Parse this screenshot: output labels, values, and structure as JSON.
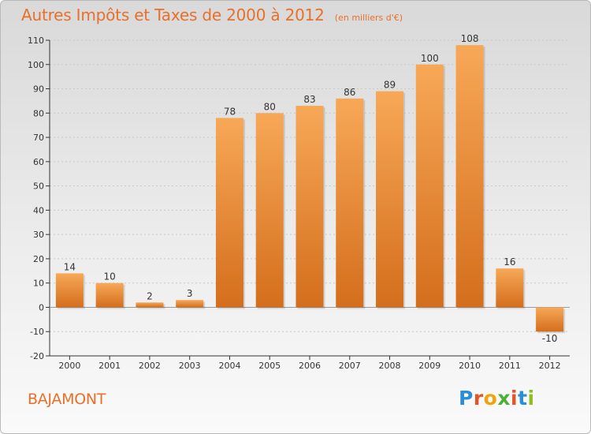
{
  "header": {
    "title": "Autres Impôts et Taxes de 2000 à 2012",
    "unit": "(en milliers d'€)"
  },
  "commune": "BAJAMONT",
  "logo": {
    "text": "Proxiti",
    "letter_colors": [
      "#2a8fd6",
      "#e65325",
      "#f0a30a",
      "#4caf3a",
      "#e65325",
      "#2a8fd6",
      "#8fbf1f"
    ]
  },
  "colors": {
    "bar_light": "#f7a857",
    "bar_dark": "#d46e1c",
    "axis": "#333333",
    "gridline": "#c8c8c8",
    "title": "#e8702a"
  },
  "chart_data": {
    "type": "bar",
    "title": "Autres Impôts et Taxes de 2000 à 2012",
    "subtitle": "(en milliers d'€)",
    "xlabel": "",
    "ylabel": "",
    "categories": [
      "2000",
      "2001",
      "2002",
      "2003",
      "2004",
      "2005",
      "2006",
      "2007",
      "2008",
      "2009",
      "2010",
      "2011",
      "2012"
    ],
    "values": [
      14,
      10,
      2,
      3,
      78,
      80,
      83,
      86,
      89,
      100,
      108,
      16,
      -10
    ],
    "data_labels": [
      "14",
      "10",
      "2",
      "3",
      "78",
      "80",
      "83",
      "86",
      "89",
      "100",
      "108",
      "16",
      "-10"
    ],
    "ylim": [
      -20,
      110
    ],
    "yticks": [
      -20,
      -10,
      0,
      10,
      20,
      30,
      40,
      50,
      60,
      70,
      80,
      90,
      100,
      110
    ],
    "ytick_labels": [
      "-20",
      "-10",
      "0",
      "10",
      "20",
      "30",
      "40",
      "50",
      "60",
      "70",
      "80",
      "90",
      "100",
      "110"
    ],
    "grid": "horizontal",
    "legend": "none"
  }
}
